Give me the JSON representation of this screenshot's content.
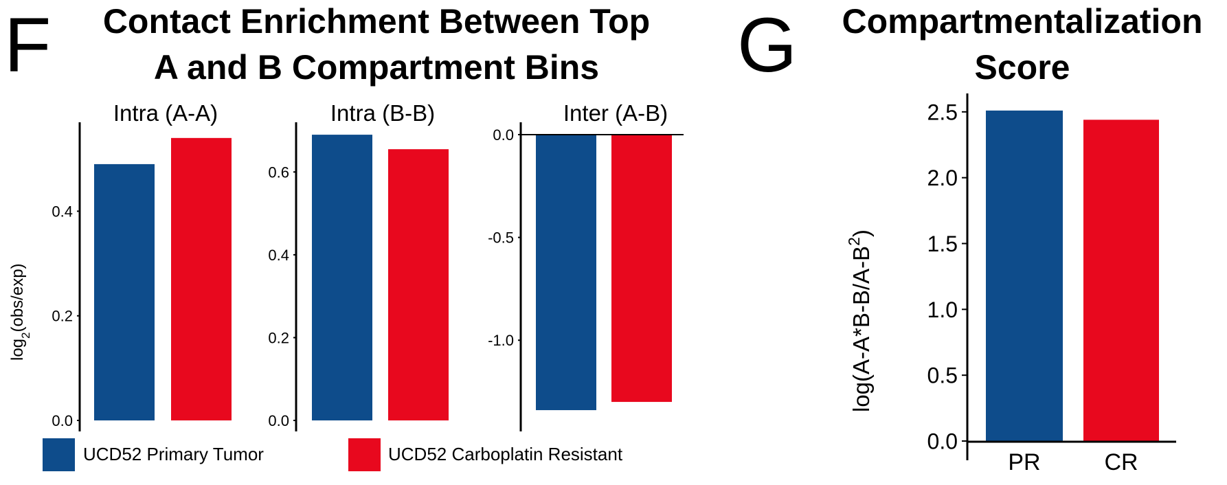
{
  "panel_f": {
    "letter": "F",
    "title_line1": "Contact Enrichment Between Top",
    "title_line2": "A and B Compartment Bins",
    "ylabel_main": "log",
    "ylabel_sub": "2",
    "ylabel_rest": "(obs/exp)"
  },
  "panel_g": {
    "letter": "G",
    "title_line1": "Compartmentalization",
    "title_line2": "Score",
    "ylabel_main": "log(A-A*B-B/A-B",
    "ylabel_sup": "2",
    "ylabel_rest": ")"
  },
  "legend": {
    "items": [
      {
        "label": "UCD52 Primary Tumor",
        "color": "#0e4c8b"
      },
      {
        "label": "UCD52 Carboplatin Resistant",
        "color": "#e8081e"
      }
    ]
  },
  "colors": {
    "primary": "#0e4c8b",
    "resistant": "#e8081e"
  },
  "chart_data": [
    {
      "type": "bar",
      "title": "Intra (A-A)",
      "categories": [
        "UCD52 Primary Tumor",
        "UCD52 Carboplatin Resistant"
      ],
      "values": [
        0.49,
        0.54
      ],
      "ylim": [
        0,
        0.57
      ],
      "ticks": [
        "0.0",
        "0.2",
        "0.4"
      ],
      "tick_values": [
        0,
        0.2,
        0.4
      ],
      "ylabel": "log2(obs/exp)"
    },
    {
      "type": "bar",
      "title": "Intra (B-B)",
      "categories": [
        "UCD52 Primary Tumor",
        "UCD52 Carboplatin Resistant"
      ],
      "values": [
        0.69,
        0.655
      ],
      "ylim": [
        0,
        0.72
      ],
      "ticks": [
        "0.0",
        "0.2",
        "0.4",
        "0.6"
      ],
      "tick_values": [
        0,
        0.2,
        0.4,
        0.6
      ]
    },
    {
      "type": "bar",
      "title": "Inter (A-B)",
      "categories": [
        "UCD52 Primary Tumor",
        "UCD52 Carboplatin Resistant"
      ],
      "values": [
        -1.34,
        -1.3
      ],
      "ylim": [
        -1.39,
        0.06
      ],
      "ticks": [
        "0.0",
        "-0.5",
        "-1.0"
      ],
      "tick_values": [
        0,
        -0.5,
        -1.0
      ]
    },
    {
      "type": "bar",
      "title": "Compartmentalization Score",
      "categories": [
        "PR",
        "CR"
      ],
      "values": [
        2.51,
        2.44
      ],
      "ylim": [
        0,
        2.64
      ],
      "ticks": [
        "0.0",
        "0.5",
        "1.0",
        "1.5",
        "2.0",
        "2.5"
      ],
      "tick_values": [
        0,
        0.5,
        1.0,
        1.5,
        2.0,
        2.5
      ],
      "ylabel": "log(A-A*B-B/A-B2)"
    }
  ]
}
